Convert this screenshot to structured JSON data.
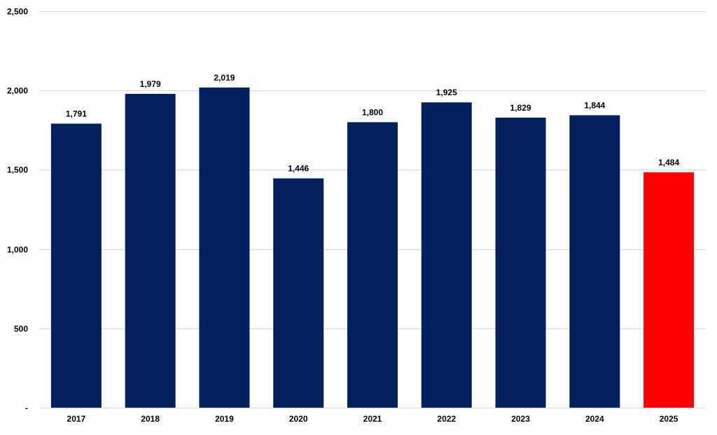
{
  "chart_data": {
    "type": "bar",
    "categories": [
      "2017",
      "2018",
      "2019",
      "2020",
      "2021",
      "2022",
      "2023",
      "2024",
      "2025"
    ],
    "values": [
      1791,
      1979,
      2019,
      1446,
      1800,
      1925,
      1829,
      1844,
      1484
    ],
    "data_labels": [
      "1,791",
      "1,979",
      "2,019",
      "1,446",
      "1,800",
      "1,925",
      "1,829",
      "1,844",
      "1,484"
    ],
    "ylim": [
      0,
      2500
    ],
    "yticks": [
      0,
      500,
      1000,
      1500,
      2000,
      2500
    ],
    "ytick_labels": [
      "-",
      "500",
      "1,000",
      "1,500",
      "2,000",
      "2,500"
    ],
    "grid": true,
    "colors": {
      "default_bar": "#002060",
      "highlight_bar": "#ff0000",
      "highlight_category": "2025"
    }
  }
}
